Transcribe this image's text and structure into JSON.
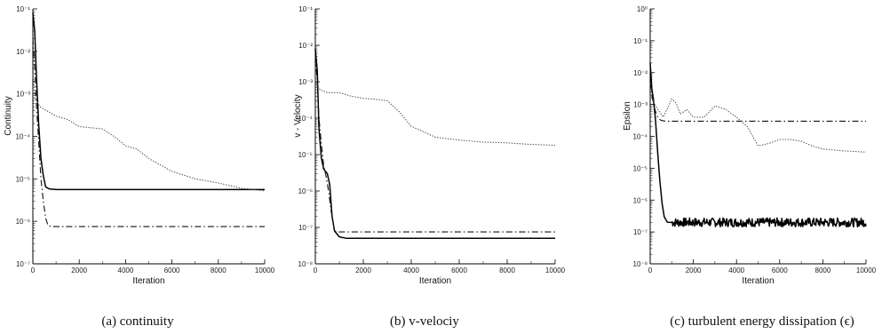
{
  "chart_data": [
    {
      "type": "line",
      "caption": "(a) continuity",
      "xlabel": "Iteration",
      "ylabel": "Continuity",
      "xlim": [
        0,
        10000
      ],
      "ylim": [
        1e-07,
        0.1
      ],
      "yscale": "log",
      "x_ticks": [
        0,
        2000,
        4000,
        6000,
        8000,
        10000
      ],
      "x_tick_labels": [
        "0",
        "2000",
        "4000",
        "6000",
        "8000",
        "10000"
      ],
      "y_ticks": [
        1e-07,
        1e-06,
        1e-05,
        0.0001,
        0.001,
        0.01,
        0.1
      ],
      "y_tick_labels": [
        "10⁻⁷",
        "10⁻⁶",
        "10⁻⁵",
        "10⁻⁴",
        "10⁻³",
        "10⁻²",
        "10⁻¹"
      ],
      "series": [
        {
          "style": "solid",
          "x": [
            0,
            80,
            150,
            250,
            350,
            450,
            550,
            700,
            1000,
            2000,
            4000,
            6000,
            8000,
            10000
          ],
          "y": [
            0.08,
            0.03,
            0.003,
            0.0002,
            3e-05,
            1.2e-05,
            6.5e-06,
            5.8e-06,
            5.6e-06,
            5.6e-06,
            5.6e-06,
            5.6e-06,
            5.6e-06,
            5.6e-06
          ]
        },
        {
          "style": "dashdot",
          "x": [
            0,
            80,
            150,
            250,
            350,
            450,
            550,
            650,
            800,
            2000,
            4000,
            6000,
            8000,
            10000
          ],
          "y": [
            0.02,
            0.004,
            0.0006,
            8e-05,
            1e-05,
            3e-06,
            1.2e-06,
            8e-07,
            7.5e-07,
            7.5e-07,
            7.5e-07,
            7.5e-07,
            7.5e-07,
            7.5e-07
          ]
        },
        {
          "style": "dotted",
          "x": [
            0,
            100,
            300,
            600,
            1000,
            1500,
            2000,
            3000,
            3500,
            4000,
            4500,
            5000,
            6000,
            7000,
            8000,
            9000,
            10000
          ],
          "y": [
            0.003,
            0.0008,
            0.0005,
            0.0004,
            0.0003,
            0.00025,
            0.00017,
            0.00015,
            0.0001,
            6e-05,
            5e-05,
            3e-05,
            1.5e-05,
            1e-05,
            8e-06,
            6e-06,
            5.2e-06
          ]
        }
      ]
    },
    {
      "type": "line",
      "caption": "(b) v-velociy",
      "xlabel": "Iteration",
      "ylabel": "v - Velocity",
      "xlim": [
        0,
        10000
      ],
      "ylim": [
        1e-08,
        0.1
      ],
      "yscale": "log",
      "x_ticks": [
        0,
        2000,
        4000,
        6000,
        8000,
        10000
      ],
      "x_tick_labels": [
        "0",
        "2000",
        "4000",
        "6000",
        "8000",
        "10000"
      ],
      "y_ticks": [
        1e-08,
        1e-07,
        1e-06,
        1e-05,
        0.0001,
        0.001,
        0.01,
        0.1
      ],
      "y_tick_labels": [
        "10⁻⁸",
        "10⁻⁷",
        "10⁻⁶",
        "10⁻⁵",
        "10⁻⁴",
        "10⁻³",
        "10⁻²",
        "10⁻¹"
      ],
      "series": [
        {
          "style": "solid",
          "x": [
            0,
            80,
            150,
            250,
            350,
            500,
            600,
            700,
            800,
            1000,
            1300,
            2000,
            4000,
            6000,
            8000,
            10000
          ],
          "y": [
            0.008,
            0.002,
            5e-05,
            8e-06,
            4e-06,
            3e-06,
            1.5e-06,
            2e-07,
            8e-08,
            5.5e-08,
            5e-08,
            5e-08,
            5e-08,
            5e-08,
            5e-08,
            5e-08
          ]
        },
        {
          "style": "dashdot",
          "x": [
            0,
            80,
            150,
            250,
            350,
            450,
            550,
            650,
            800,
            1000,
            2000,
            4000,
            6000,
            8000,
            10000
          ],
          "y": [
            0.005,
            0.001,
            0.0001,
            2e-05,
            5e-06,
            2.5e-06,
            1e-06,
            3e-07,
            8e-08,
            7.5e-08,
            7.5e-08,
            7.5e-08,
            7.5e-08,
            7.5e-08,
            7.5e-08
          ]
        },
        {
          "style": "dotted",
          "x": [
            0,
            200,
            500,
            1000,
            1500,
            2000,
            2500,
            3000,
            3500,
            4000,
            5000,
            6000,
            7000,
            8000,
            9000,
            10000
          ],
          "y": [
            0.001,
            0.0006,
            0.0005,
            0.0005,
            0.0004,
            0.00035,
            0.00033,
            0.0003,
            0.00015,
            6e-05,
            3e-05,
            2.5e-05,
            2.2e-05,
            2.1e-05,
            1.9e-05,
            1.8e-05
          ]
        }
      ]
    },
    {
      "type": "line",
      "caption": "(c) turbulent energy dissipation (ϵ)",
      "xlabel": "Iteration",
      "ylabel": "Epsilon",
      "xlim": [
        0,
        10000
      ],
      "ylim": [
        1e-08,
        1.0
      ],
      "yscale": "log",
      "x_ticks": [
        0,
        2000,
        4000,
        6000,
        8000,
        10000
      ],
      "x_tick_labels": [
        "0",
        "2000",
        "4000",
        "6000",
        "8000",
        "10000"
      ],
      "y_ticks": [
        1e-08,
        1e-07,
        1e-06,
        1e-05,
        0.0001,
        0.001,
        0.01,
        0.1,
        1.0
      ],
      "y_tick_labels": [
        "10⁻⁸",
        "10⁻⁷",
        "10⁻⁶",
        "10⁻⁵",
        "10⁻⁴",
        "10⁻³",
        "10⁻²",
        "10⁻¹",
        "10⁰"
      ],
      "series": [
        {
          "style": "solid",
          "x": [
            0,
            80,
            150,
            250,
            350,
            450,
            550,
            650,
            800,
            1000,
            10000
          ],
          "y": [
            0.02,
            0.003,
            0.0015,
            0.0003,
            3e-05,
            4e-06,
            8e-07,
            3e-07,
            2e-07,
            2e-07,
            2e-07
          ],
          "noise": true
        },
        {
          "style": "dashdot",
          "x": [
            0,
            80,
            150,
            250,
            350,
            500,
            700,
            1000,
            2000,
            4000,
            6000,
            8000,
            10000
          ],
          "y": [
            0.005,
            0.002,
            0.001,
            0.0006,
            0.0004,
            0.00032,
            0.0003,
            0.0003,
            0.0003,
            0.0003,
            0.0003,
            0.0003,
            0.0003
          ]
        },
        {
          "style": "dotted",
          "x": [
            0,
            300,
            600,
            850,
            1000,
            1200,
            1400,
            1700,
            2000,
            2500,
            3000,
            3500,
            4000,
            4500,
            5000,
            5500,
            6000,
            6500,
            7000,
            7500,
            8000,
            9000,
            10000
          ],
          "y": [
            0.002,
            0.0008,
            0.0004,
            0.0009,
            0.0015,
            0.0011,
            0.0005,
            0.0007,
            0.0004,
            0.0004,
            0.0009,
            0.0007,
            0.0004,
            0.0002,
            5e-05,
            6e-05,
            8e-05,
            8e-05,
            7e-05,
            5e-05,
            4e-05,
            3.5e-05,
            3.2e-05
          ]
        }
      ]
    }
  ]
}
